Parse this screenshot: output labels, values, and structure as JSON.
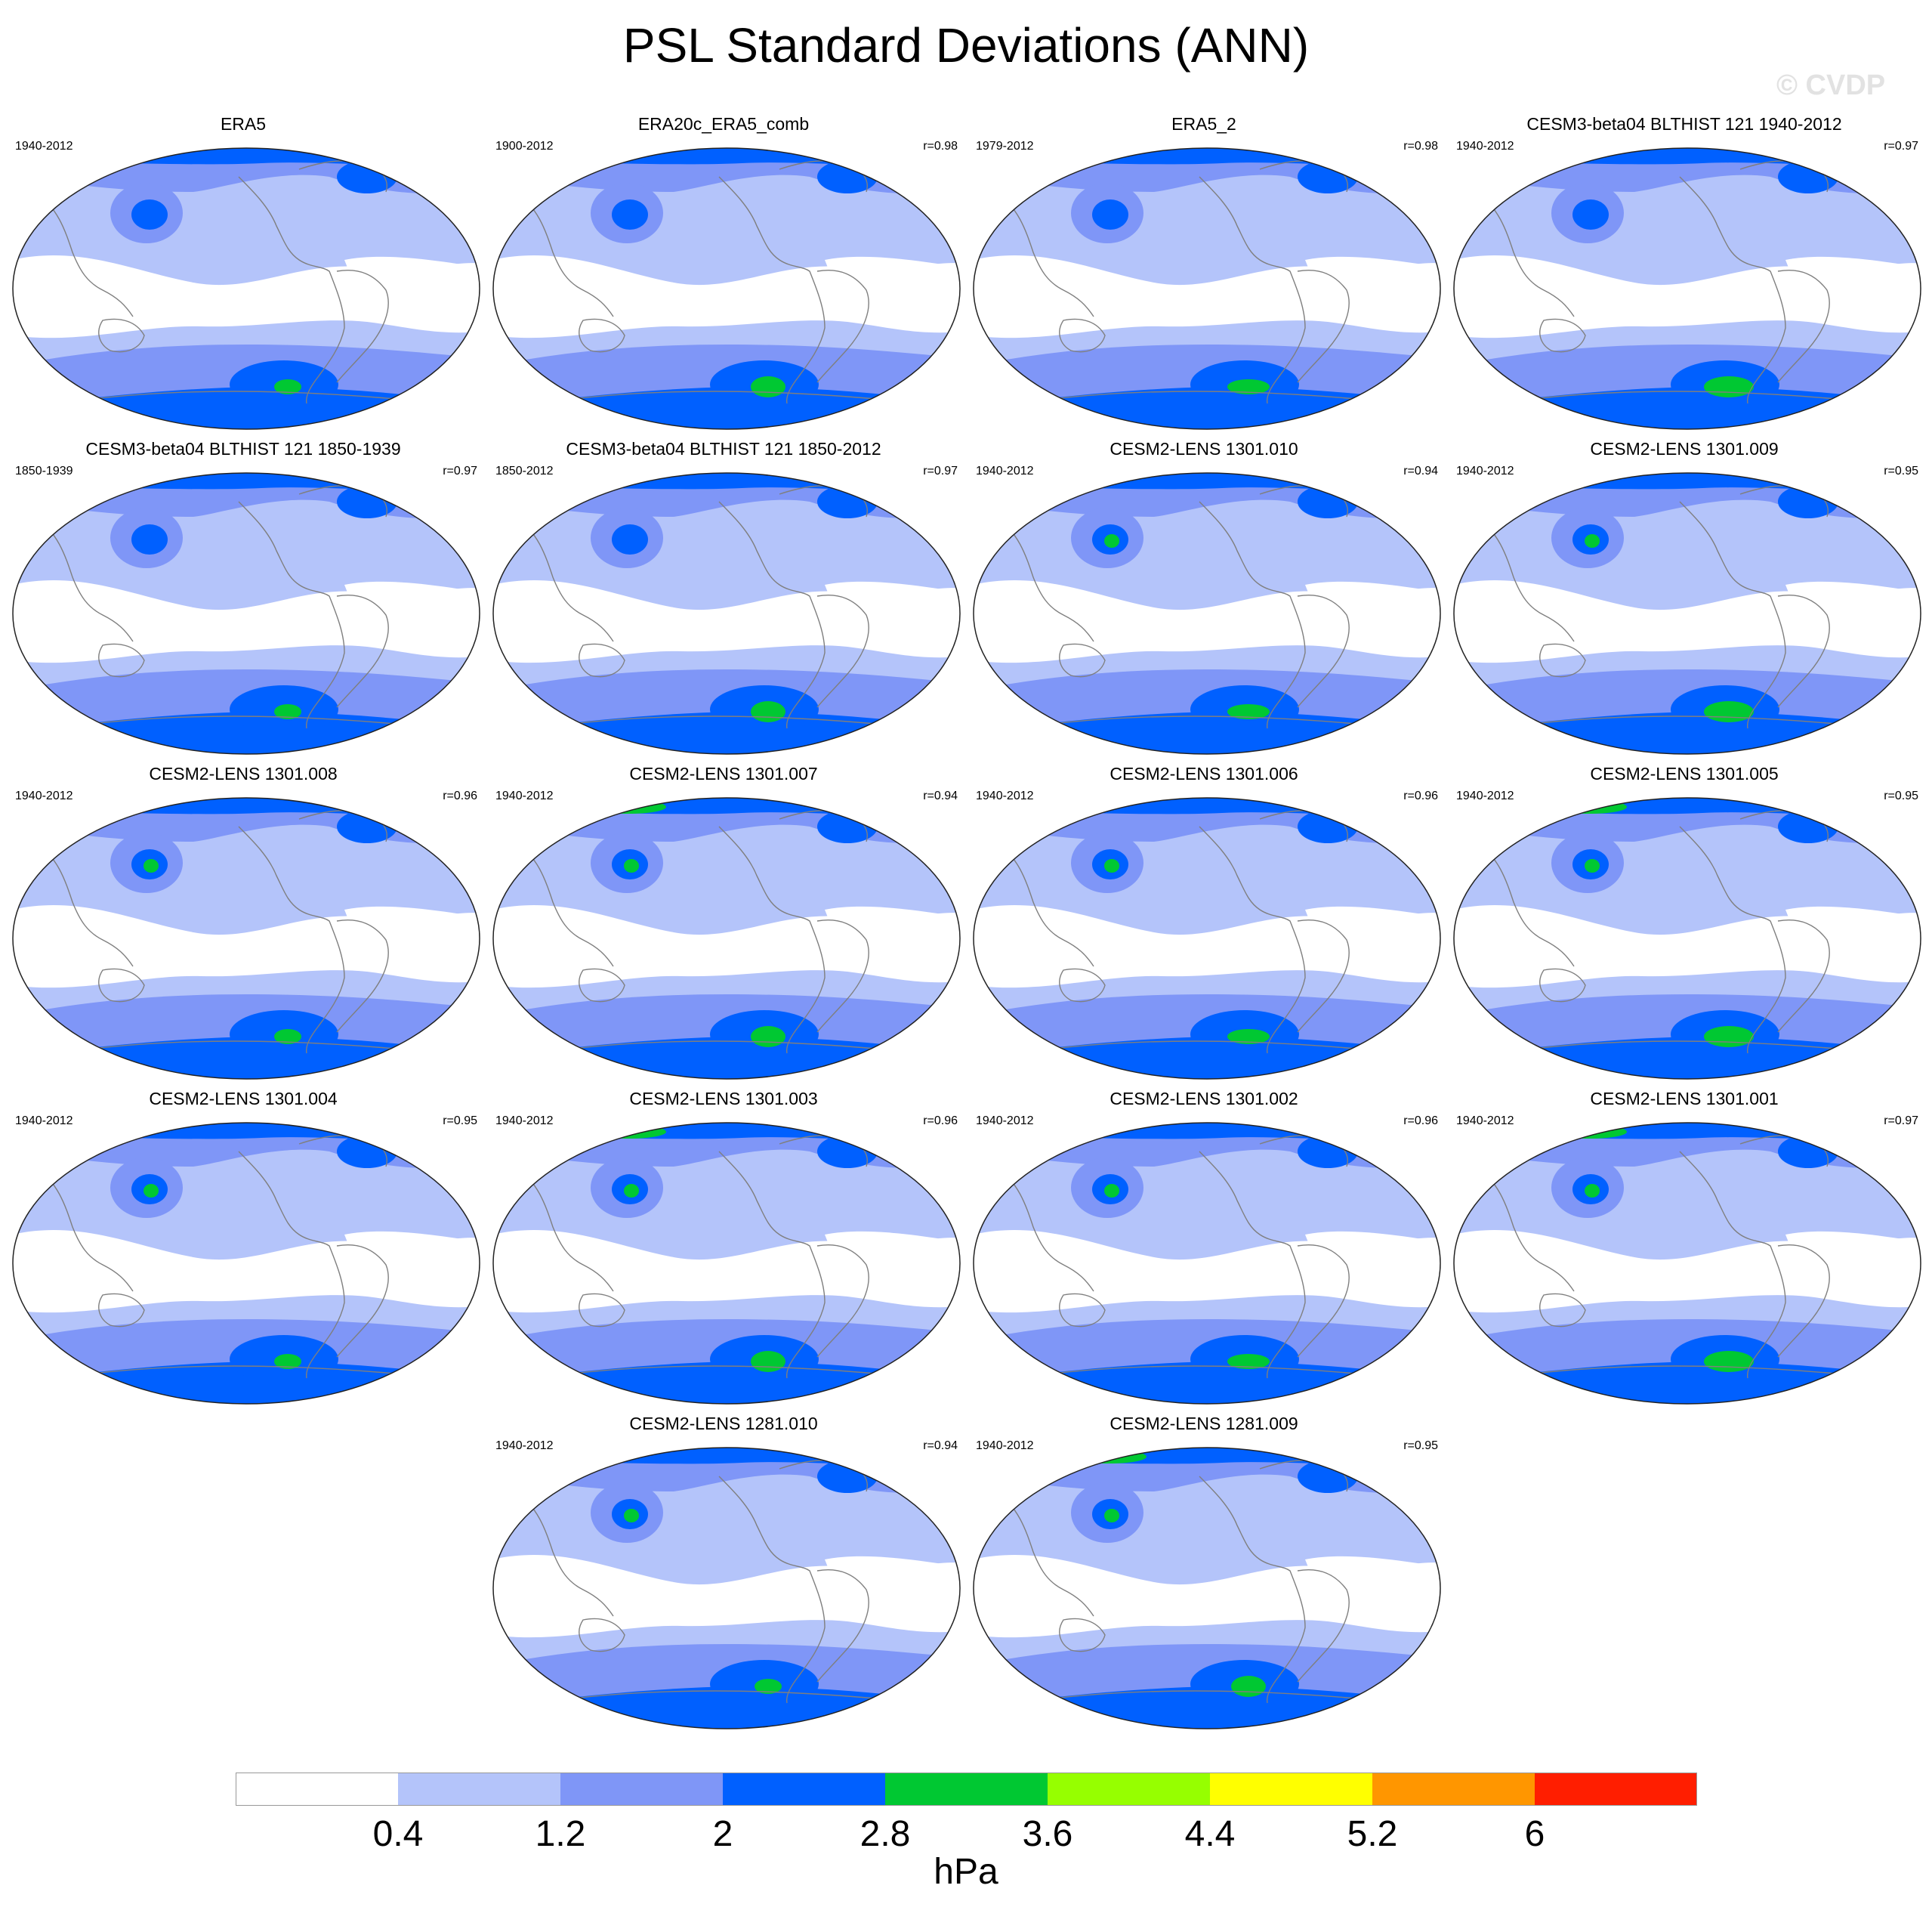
{
  "title": "PSL Standard Deviations (ANN)",
  "watermark": "© CVDP",
  "panels": [
    {
      "title": "ERA5",
      "years": "1940-2012",
      "r": ""
    },
    {
      "title": "ERA20c_ERA5_comb",
      "years": "1900-2012",
      "r": "r=0.98"
    },
    {
      "title": "ERA5_2",
      "years": "1979-2012",
      "r": "r=0.98"
    },
    {
      "title": "CESM3-beta04 BLTHIST 121 1940-2012",
      "years": "1940-2012",
      "r": "r=0.97"
    },
    {
      "title": "CESM3-beta04 BLTHIST 121 1850-1939",
      "years": "1850-1939",
      "r": "r=0.97"
    },
    {
      "title": "CESM3-beta04 BLTHIST 121 1850-2012",
      "years": "1850-2012",
      "r": "r=0.97"
    },
    {
      "title": "CESM2-LENS 1301.010",
      "years": "1940-2012",
      "r": "r=0.94"
    },
    {
      "title": "CESM2-LENS 1301.009",
      "years": "1940-2012",
      "r": "r=0.95"
    },
    {
      "title": "CESM2-LENS 1301.008",
      "years": "1940-2012",
      "r": "r=0.96"
    },
    {
      "title": "CESM2-LENS 1301.007",
      "years": "1940-2012",
      "r": "r=0.94"
    },
    {
      "title": "CESM2-LENS 1301.006",
      "years": "1940-2012",
      "r": "r=0.96"
    },
    {
      "title": "CESM2-LENS 1301.005",
      "years": "1940-2012",
      "r": "r=0.95"
    },
    {
      "title": "CESM2-LENS 1301.004",
      "years": "1940-2012",
      "r": "r=0.95"
    },
    {
      "title": "CESM2-LENS 1301.003",
      "years": "1940-2012",
      "r": "r=0.96"
    },
    {
      "title": "CESM2-LENS 1301.002",
      "years": "1940-2012",
      "r": "r=0.96"
    },
    {
      "title": "CESM2-LENS 1301.001",
      "years": "1940-2012",
      "r": "r=0.97"
    },
    {
      "title": "CESM2-LENS 1281.010",
      "years": "1940-2012",
      "r": "r=0.94"
    },
    {
      "title": "CESM2-LENS 1281.009",
      "years": "1940-2012",
      "r": "r=0.95"
    }
  ],
  "colorbar": {
    "units": "hPa",
    "labels": [
      "0.4",
      "1.2",
      "2",
      "2.8",
      "3.6",
      "4.4",
      "5.2",
      "6"
    ],
    "colors": [
      "#ffffff",
      "#b4c4fa",
      "#7f96f7",
      "#0060ff",
      "#00c832",
      "#96ff00",
      "#ffff00",
      "#ff9600",
      "#ff1e00"
    ]
  }
}
